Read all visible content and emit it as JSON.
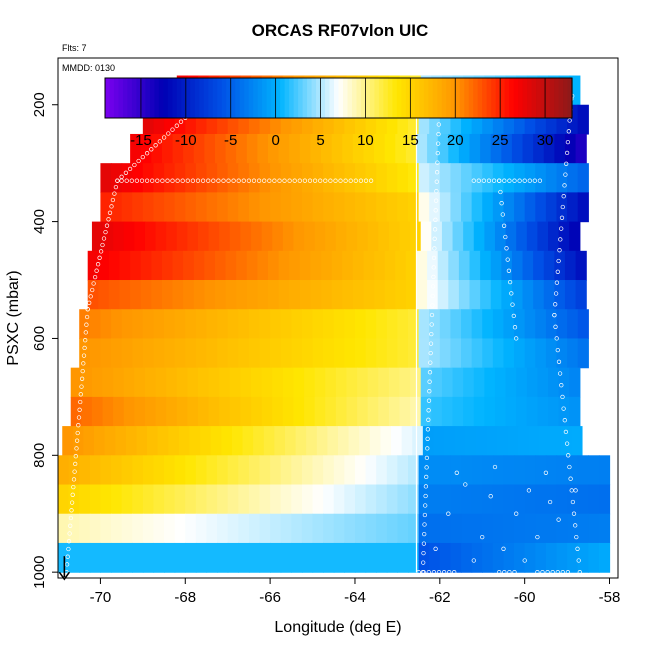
{
  "chart_data": {
    "type": "heatmap",
    "title": "ORCAS RF07vlon UIC",
    "flts_label": "Flts: 7",
    "mmdd_label": "MMDD: 0130",
    "xlabel": "Longitude (deg E)",
    "ylabel": "PSXC (mbar)",
    "xlim": [
      -71,
      -57.8
    ],
    "ylim_reversed": [
      1010,
      120
    ],
    "x_ticks": [
      -70,
      -68,
      -66,
      -64,
      -62,
      -60,
      -58
    ],
    "x_tick_labels": [
      "-70",
      "-68",
      "-66",
      "-64",
      "-62",
      "-60",
      "-58"
    ],
    "y_ticks": [
      200,
      400,
      600,
      800,
      1000
    ],
    "y_tick_labels": [
      "200",
      "400",
      "600",
      "800",
      "1000"
    ],
    "colorbar": {
      "range": [
        -19,
        33
      ],
      "ticks": [
        -15,
        -10,
        -5,
        0,
        5,
        10,
        15,
        20,
        25,
        30
      ],
      "tick_labels": [
        "-15",
        "-10",
        "-5",
        "0",
        "5",
        "10",
        "15",
        "20",
        "25",
        "30"
      ],
      "colors": [
        "#7b00f0",
        "#0000b4",
        "#0050e6",
        "#00b4ff",
        "#ffffff",
        "#ffe600",
        "#ff9600",
        "#ff0000",
        "#8c1a1a"
      ]
    },
    "pressure_levels": [
      175,
      225,
      275,
      325,
      375,
      425,
      475,
      525,
      575,
      625,
      675,
      725,
      775,
      825,
      875,
      925,
      975
    ],
    "rows": [
      {
        "p": 175,
        "x0": -68.2,
        "x1": -58.6,
        "left": 27,
        "mid": 12,
        "right": 0
      },
      {
        "p": 225,
        "x0": -69.0,
        "x1": -58.6,
        "left": 28,
        "mid": 12,
        "right": -12
      },
      {
        "p": 275,
        "x0": -69.3,
        "x1": -58.6,
        "left": 27,
        "mid": 12,
        "right": -15
      },
      {
        "p": 325,
        "x0": -70.0,
        "x1": -58.6,
        "left": 28,
        "mid": 13,
        "right": -5
      },
      {
        "p": 375,
        "x0": -70.0,
        "x1": -58.6,
        "left": 25,
        "mid": 15,
        "right": -12
      },
      {
        "p": 425,
        "x0": -70.2,
        "x1": -58.6,
        "left": 28,
        "mid": 15,
        "right": -14
      },
      {
        "p": 475,
        "x0": -70.3,
        "x1": -58.6,
        "left": 27,
        "mid": 15,
        "right": -12
      },
      {
        "p": 525,
        "x0": -70.3,
        "x1": -58.6,
        "left": 23,
        "mid": 15,
        "right": -8
      },
      {
        "p": 575,
        "x0": -70.5,
        "x1": -58.6,
        "left": 21,
        "mid": 12,
        "right": -6
      },
      {
        "p": 625,
        "x0": -70.5,
        "x1": -58.6,
        "left": 20,
        "mid": 12,
        "right": -4
      },
      {
        "p": 675,
        "x0": -70.7,
        "x1": -58.6,
        "left": 20,
        "mid": 10,
        "right": -3
      },
      {
        "p": 725,
        "x0": -70.7,
        "x1": -58.6,
        "left": 22,
        "mid": 9,
        "right": -2
      },
      {
        "p": 775,
        "x0": -70.9,
        "x1": -58.6,
        "left": 20,
        "mid": 6,
        "right": 0
      },
      {
        "p": 825,
        "x0": -71.0,
        "x1": -58.1,
        "left": 18,
        "mid": 5,
        "right": -3
      },
      {
        "p": 875,
        "x0": -71.0,
        "x1": -58.1,
        "left": 15,
        "mid": 4,
        "right": -4
      },
      {
        "p": 925,
        "x0": -71.0,
        "x1": -58.1,
        "left": 9,
        "mid": 3,
        "right": -3
      },
      {
        "p": 975,
        "x0": -71.0,
        "x1": -58.1,
        "left": 1,
        "mid": 1,
        "right": 0
      }
    ],
    "marker": {
      "longitude": -70.85,
      "pressure": 1000,
      "shape": "down-arrow"
    }
  }
}
